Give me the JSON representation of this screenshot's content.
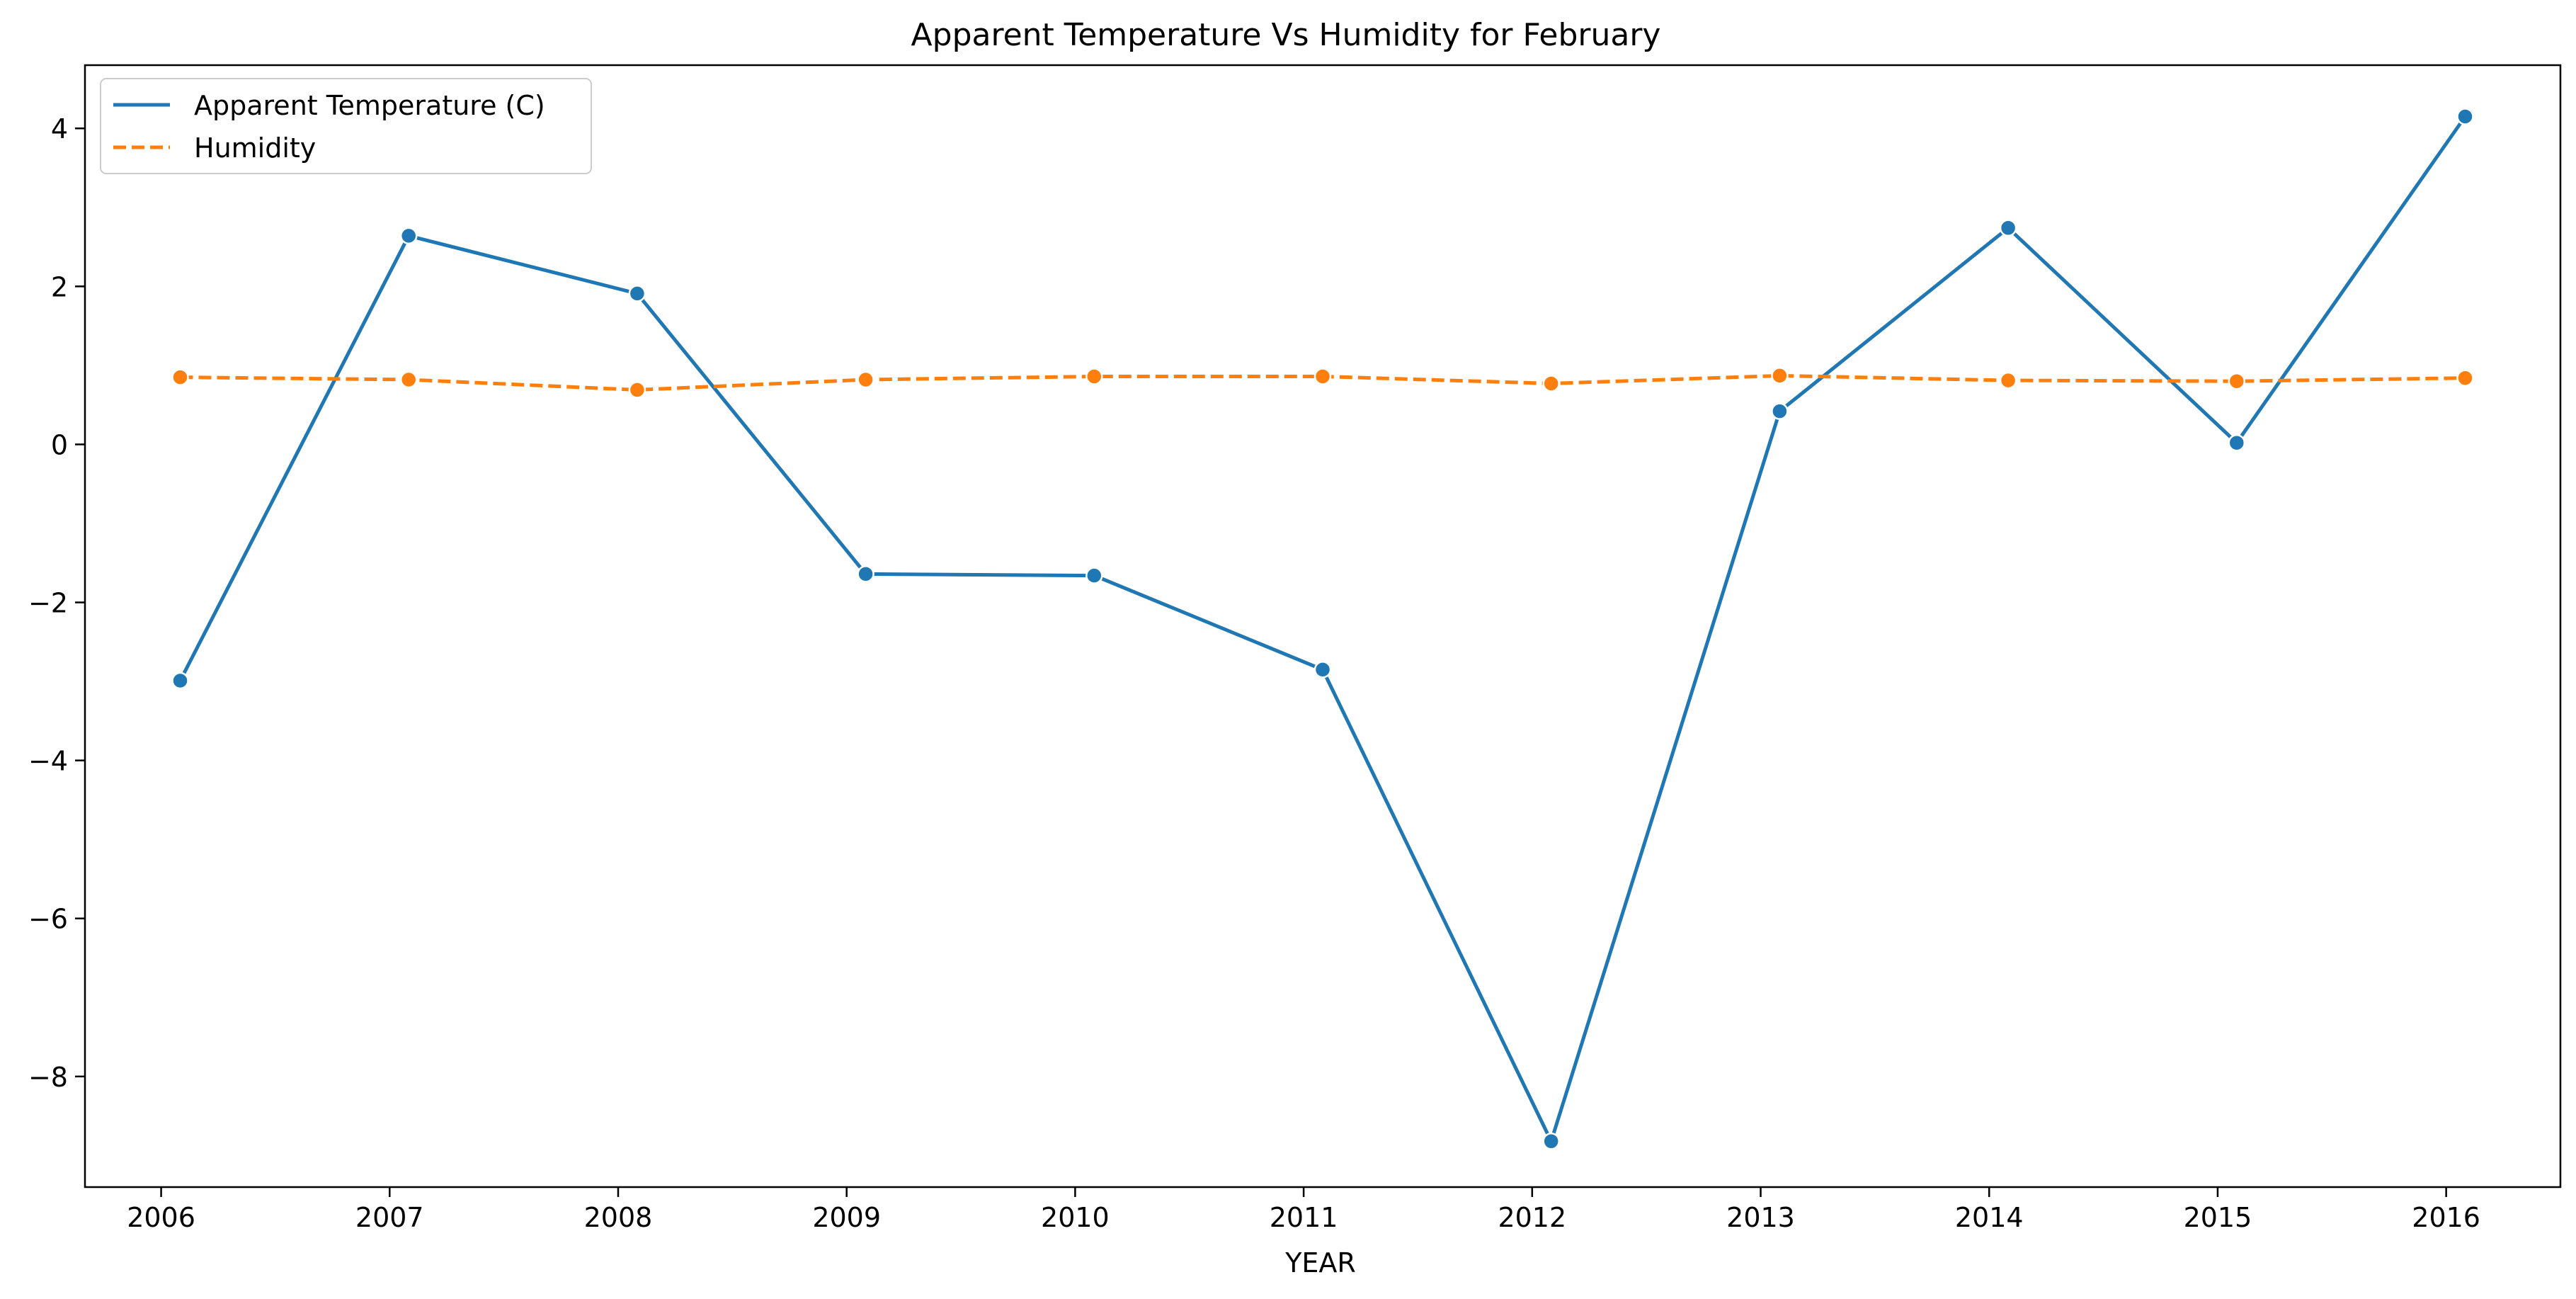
{
  "chart_data": {
    "type": "line",
    "title": "Apparent Temperature Vs Humidity for February",
    "xlabel": "YEAR",
    "ylabel": "",
    "x": [
      "2006-02",
      "2007-02",
      "2008-02",
      "2009-02",
      "2010-02",
      "2011-02",
      "2012-02",
      "2013-02",
      "2014-02",
      "2015-02",
      "2016-02"
    ],
    "x_ticks": [
      "2006",
      "2007",
      "2008",
      "2009",
      "2010",
      "2011",
      "2012",
      "2013",
      "2014",
      "2015",
      "2016"
    ],
    "xlim": [
      "2005-09",
      "2016-07"
    ],
    "y_ticks": [
      -8,
      -6,
      -4,
      -2,
      0,
      2,
      4
    ],
    "ylim": [
      -9.4,
      4.8
    ],
    "grid": false,
    "legend_position": "top-left",
    "series": [
      {
        "name": "Apparent Temperature (C)",
        "color": "#1f77b4",
        "line_style": "solid",
        "marker": "circle",
        "values": [
          -2.99,
          2.64,
          1.91,
          -1.64,
          -1.66,
          -2.85,
          -8.82,
          0.42,
          2.74,
          0.02,
          4.15
        ]
      },
      {
        "name": "Humidity",
        "color": "#ff7f0e",
        "line_style": "dashed",
        "marker": "circle",
        "values": [
          0.85,
          0.82,
          0.69,
          0.82,
          0.86,
          0.86,
          0.77,
          0.87,
          0.81,
          0.8,
          0.84
        ]
      }
    ]
  }
}
